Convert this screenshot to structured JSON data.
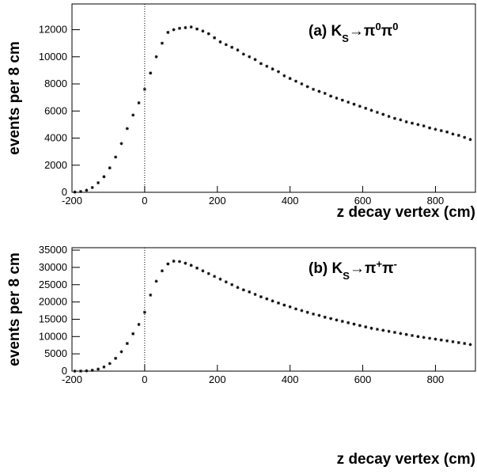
{
  "chart_data": [
    {
      "type": "scatter",
      "annotation": [
        "(a) K",
        "S",
        "→π",
        "0",
        "π",
        "0"
      ],
      "x_label": "z decay vertex (cm)",
      "y_label": "events per 8 cm",
      "xlim": [
        -200,
        910
      ],
      "xticks": [
        -200,
        0,
        200,
        400,
        600,
        800
      ],
      "ylim": [
        0,
        13900
      ],
      "yticks": [
        0,
        2000,
        4000,
        6000,
        8000,
        10000,
        12000
      ],
      "vline": 0,
      "color": "#000000",
      "x": [
        -192,
        -176,
        -160,
        -144,
        -128,
        -112,
        -96,
        -80,
        -64,
        -48,
        -32,
        -16,
        0,
        16,
        32,
        48,
        64,
        80,
        96,
        112,
        128,
        144,
        160,
        176,
        192,
        208,
        224,
        240,
        256,
        272,
        288,
        304,
        320,
        336,
        352,
        368,
        384,
        400,
        416,
        432,
        448,
        464,
        480,
        496,
        512,
        528,
        544,
        560,
        576,
        592,
        608,
        624,
        640,
        656,
        672,
        688,
        704,
        720,
        736,
        752,
        768,
        784,
        800,
        816,
        832,
        848,
        864,
        880,
        896
      ],
      "values": [
        20,
        60,
        150,
        350,
        700,
        1150,
        1800,
        2600,
        3600,
        4700,
        5700,
        6600,
        7600,
        8800,
        10000,
        11000,
        11800,
        12000,
        12100,
        12150,
        12200,
        12050,
        11900,
        11700,
        11400,
        11100,
        10900,
        10700,
        10500,
        10200,
        10000,
        9800,
        9500,
        9300,
        9100,
        8900,
        8600,
        8400,
        8200,
        8000,
        7800,
        7600,
        7450,
        7300,
        7100,
        6950,
        6800,
        6650,
        6500,
        6350,
        6200,
        6050,
        5900,
        5750,
        5600,
        5450,
        5350,
        5200,
        5100,
        5000,
        4900,
        4750,
        4650,
        4550,
        4450,
        4300,
        4200,
        4050,
        3900
      ]
    },
    {
      "type": "scatter",
      "annotation": [
        "(b) K",
        "S",
        "→π",
        "+",
        "π",
        "-"
      ],
      "x_label": "z decay vertex (cm)",
      "y_label": "events per 8 cm",
      "xlim": [
        -200,
        910
      ],
      "xticks": [
        -200,
        0,
        200,
        400,
        600,
        800
      ],
      "ylim": [
        0,
        35700
      ],
      "yticks": [
        0,
        5000,
        10000,
        15000,
        20000,
        25000,
        30000,
        35000
      ],
      "vline": 0,
      "color": "#000000",
      "x": [
        -192,
        -176,
        -160,
        -144,
        -128,
        -112,
        -96,
        -80,
        -64,
        -48,
        -32,
        -16,
        0,
        16,
        32,
        48,
        64,
        80,
        96,
        112,
        128,
        144,
        160,
        176,
        192,
        208,
        224,
        240,
        256,
        272,
        288,
        304,
        320,
        336,
        352,
        368,
        384,
        400,
        416,
        432,
        448,
        464,
        480,
        496,
        512,
        528,
        544,
        560,
        576,
        592,
        608,
        624,
        640,
        656,
        672,
        688,
        704,
        720,
        736,
        752,
        768,
        784,
        800,
        816,
        832,
        848,
        864,
        880,
        896
      ],
      "values": [
        0,
        20,
        80,
        250,
        600,
        1200,
        2200,
        3700,
        5600,
        8000,
        10800,
        13500,
        17000,
        22000,
        26000,
        29000,
        31000,
        31800,
        31700,
        31200,
        30600,
        29800,
        29000,
        28200,
        27400,
        26600,
        25800,
        25000,
        24200,
        23500,
        22900,
        22200,
        21500,
        20900,
        20300,
        19700,
        19100,
        18600,
        18000,
        17500,
        17000,
        16500,
        16100,
        15600,
        15200,
        14800,
        14400,
        14000,
        13600,
        13200,
        12800,
        12400,
        12100,
        11800,
        11500,
        11200,
        10900,
        10600,
        10300,
        10000,
        9750,
        9500,
        9250,
        9000,
        8750,
        8500,
        8250,
        8000,
        7700
      ]
    }
  ]
}
